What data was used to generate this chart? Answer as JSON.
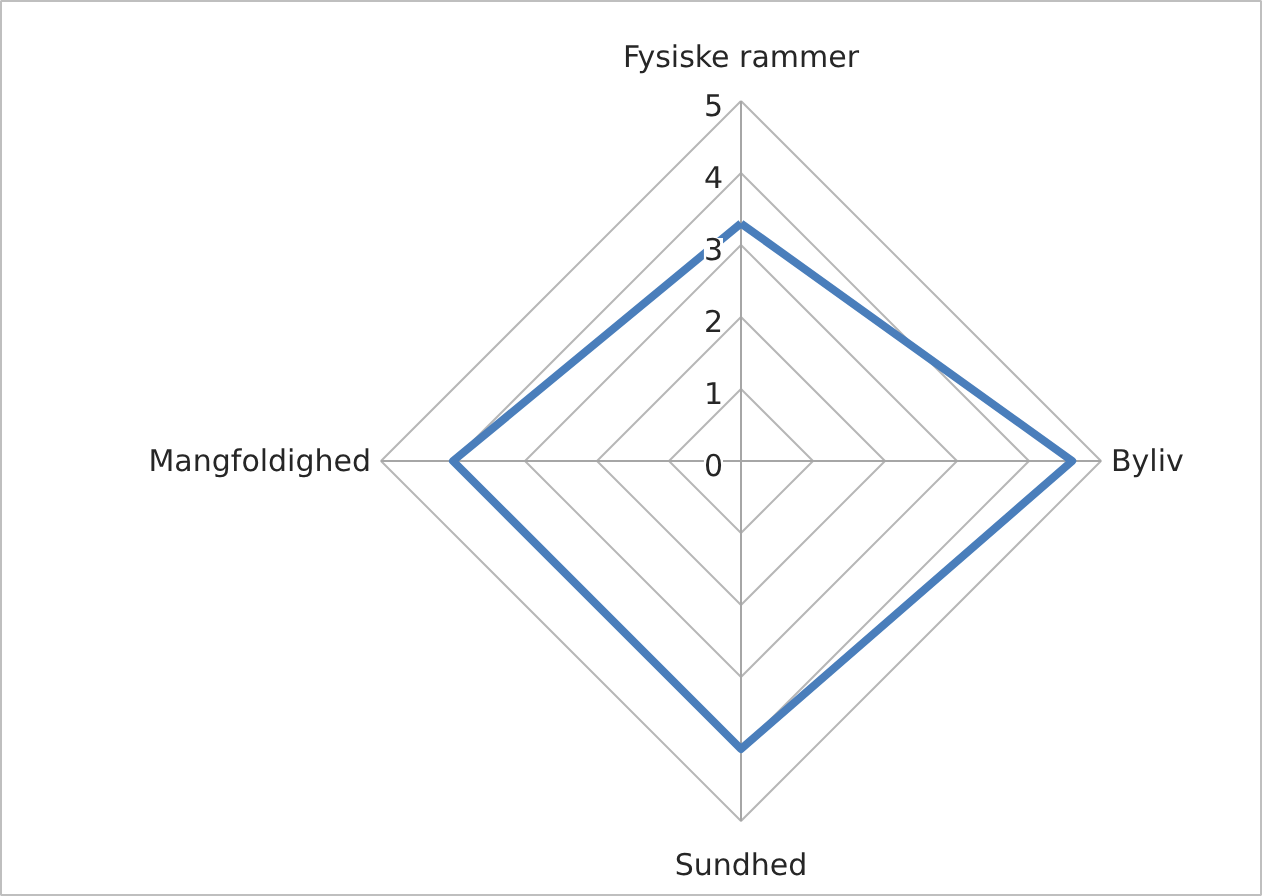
{
  "chart_data": {
    "type": "radar",
    "categories": [
      "Fysiske rammer",
      "Byliv",
      "Sundhed",
      "Mangfoldighed"
    ],
    "series": [
      {
        "color": "#4a7ebb",
        "values": [
          3.3,
          4.6,
          4.0,
          4.0
        ]
      }
    ],
    "ylim": [
      0,
      5
    ],
    "yticks": [
      0,
      1,
      2,
      3,
      4,
      5
    ],
    "grid": true
  }
}
